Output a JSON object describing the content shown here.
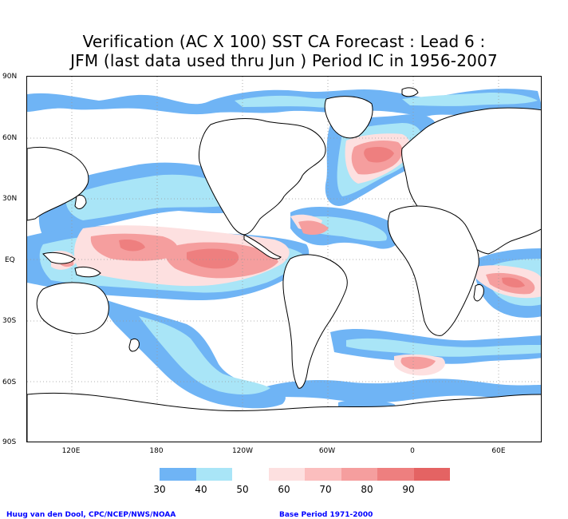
{
  "title": {
    "line1": "Verification (AC X 100) SST CA Forecast : Lead 6 :",
    "line2": "JFM (last data used thru Jun ) Period IC in 1956-2007"
  },
  "lat_labels": [
    "90N",
    "60N",
    "30N",
    "EQ",
    "30S",
    "60S",
    "90S"
  ],
  "lon_labels": [
    "120E",
    "180",
    "120W",
    "60W",
    "0",
    "60E"
  ],
  "colorbar": {
    "levels": [
      "30",
      "40",
      "50",
      "60",
      "70",
      "80",
      "90"
    ],
    "colors": [
      "#6fb4f5",
      "#a9e5f7",
      "#ffffff",
      "#fde0e0",
      "#fbbebe",
      "#f59e9e",
      "#ee7f7f",
      "#e46363"
    ]
  },
  "footer": {
    "left": "Huug van den Dool, CPC/NCEP/NWS/NOAA",
    "right": "Base Period 1971-2000"
  }
}
